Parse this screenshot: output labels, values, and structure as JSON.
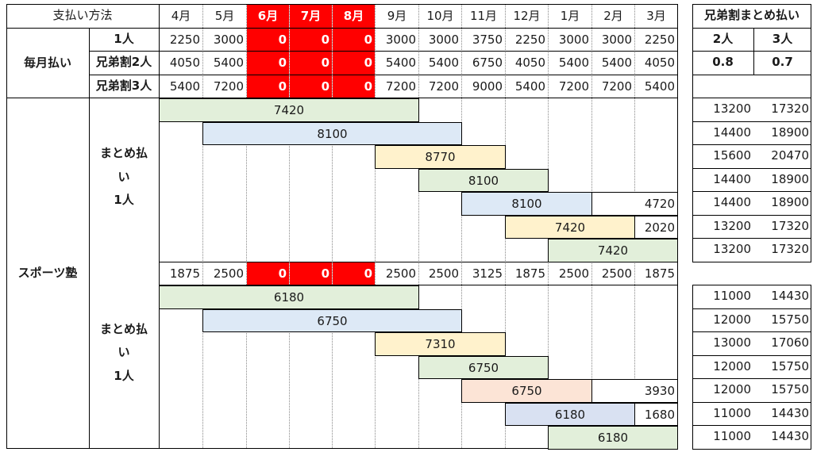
{
  "header": {
    "label": "支払い方法",
    "months": [
      "4月",
      "5月",
      "6月",
      "7月",
      "8月",
      "9月",
      "10月",
      "11月",
      "12月",
      "1月",
      "2月",
      "3月"
    ],
    "red_months": [
      2,
      3,
      4
    ],
    "side_title": "兄弟割まとめ払い"
  },
  "monthly": {
    "group_label": "毎月払い",
    "rows": [
      {
        "label": "1人",
        "values": [
          2250,
          3000,
          0,
          0,
          0,
          3000,
          3000,
          3750,
          2250,
          3000,
          3000,
          2250
        ]
      },
      {
        "label": "兄弟割2人",
        "values": [
          4050,
          5400,
          0,
          0,
          0,
          5400,
          5400,
          6750,
          4050,
          5400,
          5400,
          4050
        ]
      },
      {
        "label": "兄弟割3人",
        "values": [
          5400,
          7200,
          0,
          0,
          0,
          7200,
          7200,
          9000,
          5400,
          7200,
          7200,
          5400
        ]
      }
    ]
  },
  "side_header": {
    "col1": "2人",
    "col2": "3人",
    "rate1": "0.8",
    "rate2": "0.7"
  },
  "sports_label": "スポーツ塾",
  "lump_label": [
    "まとめ払",
    "い",
    "1人"
  ],
  "section1": {
    "bars": [
      {
        "start": 0,
        "span": 6,
        "value": "7420",
        "color": "g"
      },
      {
        "start": 1,
        "span": 6,
        "value": "8100",
        "color": "b"
      },
      {
        "start": 5,
        "span": 3,
        "value": "8770",
        "color": "y"
      },
      {
        "start": 6,
        "span": 3,
        "value": "8100",
        "color": "g"
      },
      {
        "start": 7,
        "span": 3,
        "value": "8100",
        "color": "b",
        "tail": "4720"
      },
      {
        "start": 8,
        "span": 3,
        "value": "7420",
        "color": "y",
        "tail": "2020"
      },
      {
        "start": 9,
        "span": 3,
        "value": "7420",
        "color": "g"
      }
    ],
    "side": [
      [
        "13200",
        "17320"
      ],
      [
        "14400",
        "18900"
      ],
      [
        "15600",
        "20470"
      ],
      [
        "14400",
        "18900"
      ],
      [
        "14400",
        "18900"
      ],
      [
        "13200",
        "17320"
      ],
      [
        "13200",
        "17320"
      ]
    ]
  },
  "section2": {
    "monthly": [
      1875,
      2500,
      0,
      0,
      0,
      2500,
      2500,
      3125,
      1875,
      2500,
      2500,
      1875
    ],
    "bars": [
      {
        "start": 0,
        "span": 6,
        "value": "6180",
        "color": "g"
      },
      {
        "start": 1,
        "span": 6,
        "value": "6750",
        "color": "b"
      },
      {
        "start": 5,
        "span": 3,
        "value": "7310",
        "color": "y"
      },
      {
        "start": 6,
        "span": 3,
        "value": "6750",
        "color": "g"
      },
      {
        "start": 7,
        "span": 3,
        "value": "6750",
        "color": "p",
        "tail": "3930"
      },
      {
        "start": 8,
        "span": 3,
        "value": "6180",
        "color": "v",
        "tail": "1680"
      },
      {
        "start": 9,
        "span": 3,
        "value": "6180",
        "color": "g"
      }
    ],
    "side": [
      [
        "11000",
        "14430"
      ],
      [
        "12000",
        "15750"
      ],
      [
        "13000",
        "17060"
      ],
      [
        "12000",
        "15750"
      ],
      [
        "12000",
        "15750"
      ],
      [
        "11000",
        "14430"
      ],
      [
        "11000",
        "14430"
      ]
    ]
  },
  "colors": {
    "red": "#ff0000",
    "green": "#e2efda",
    "blue": "#dde9f6",
    "yellow": "#fff2cc",
    "peach": "#fce4d6",
    "lavender": "#d9e1f2"
  }
}
